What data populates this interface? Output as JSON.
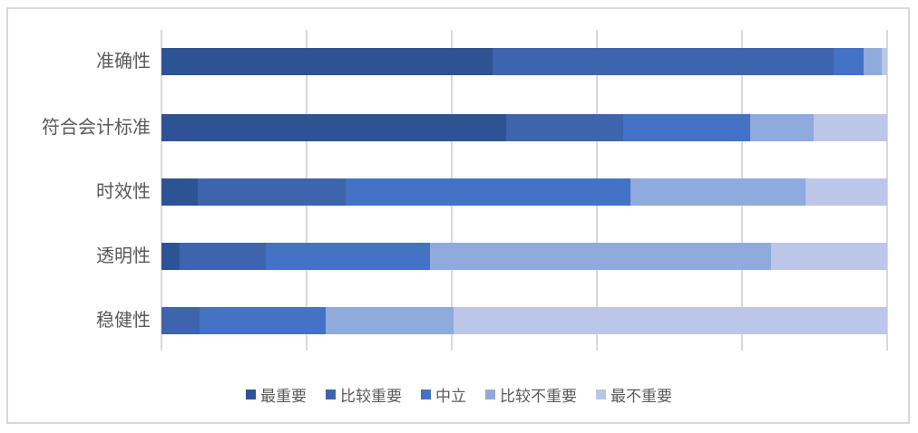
{
  "chart_data": {
    "type": "bar",
    "orientation": "horizontal",
    "stacked": "percent",
    "title": "",
    "xlabel": "",
    "ylabel": "",
    "categories": [
      "准确性",
      "符合会计标准",
      "时效性",
      "透明性",
      "稳健性"
    ],
    "series": [
      {
        "name": "最重要",
        "color": "#2E5395",
        "values": [
          45.6,
          47.5,
          5.0,
          2.5,
          0.0
        ]
      },
      {
        "name": "比较重要",
        "color": "#3E64AD",
        "values": [
          47.0,
          16.1,
          20.4,
          11.9,
          5.3
        ]
      },
      {
        "name": "中立",
        "color": "#4472C4",
        "values": [
          4.1,
          17.5,
          39.2,
          22.6,
          17.3
        ]
      },
      {
        "name": "比较不重要",
        "color": "#8FAADC",
        "values": [
          2.5,
          8.8,
          24.1,
          47.0,
          17.7
        ]
      },
      {
        "name": "最不重要",
        "color": "#BCC6E8",
        "values": [
          0.8,
          10.1,
          11.3,
          16.0,
          59.7
        ]
      }
    ],
    "xlim": [
      0,
      100
    ],
    "x_gridline_interval": 20,
    "axis_tick_labels_visible": false,
    "legend_position": "bottom",
    "grid_on": true
  },
  "colors": {
    "text": "#595959",
    "gridline": "#D9D9D9",
    "frame_border": "#D9D9D9",
    "background": "#FFFFFF"
  }
}
